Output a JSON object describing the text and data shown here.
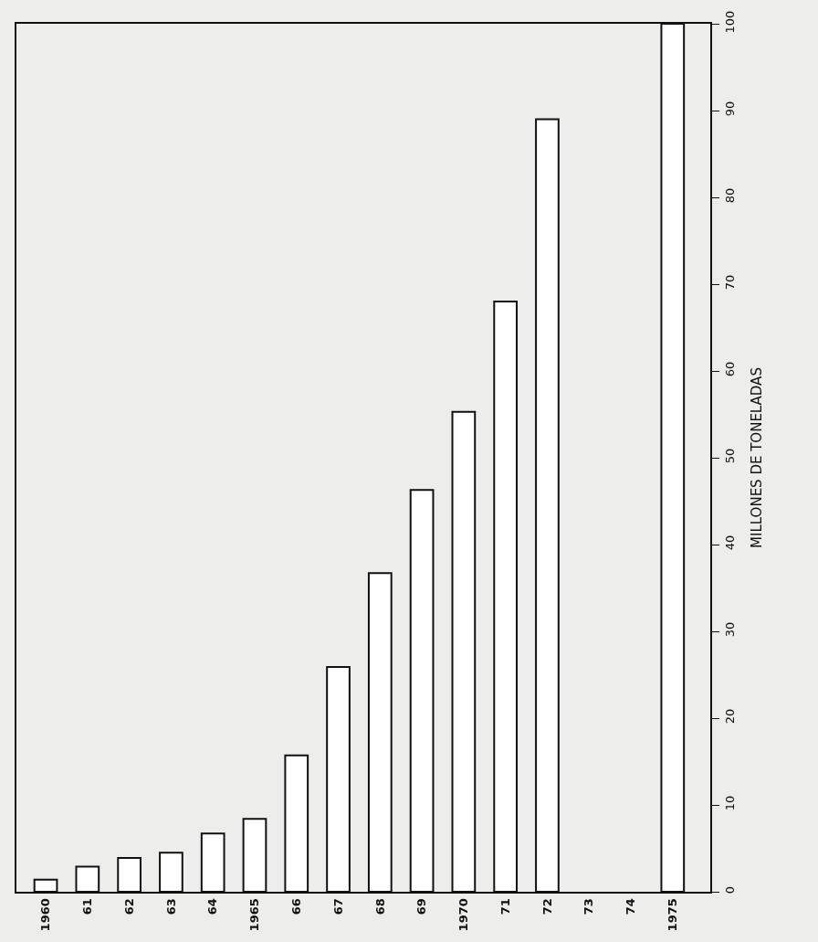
{
  "chart_data": {
    "type": "bar",
    "ylabel": "MILLONES DE TONELADAS",
    "categories": [
      "1960",
      "61",
      "62",
      "63",
      "64",
      "1965",
      "66",
      "67",
      "68",
      "69",
      "1970",
      "71",
      "72",
      "73",
      "74",
      "1975"
    ],
    "values": [
      1.4,
      2.9,
      3.9,
      4.5,
      6.7,
      8.4,
      15.7,
      25.9,
      36.7,
      46.3,
      55.3,
      68,
      89,
      null,
      null,
      100
    ],
    "color": "#ffffff",
    "ylim": [
      0,
      100
    ],
    "yticks": [
      0,
      10,
      20,
      30,
      40,
      50,
      60,
      70,
      80,
      90,
      100
    ],
    "grid": false,
    "legend": false
  }
}
